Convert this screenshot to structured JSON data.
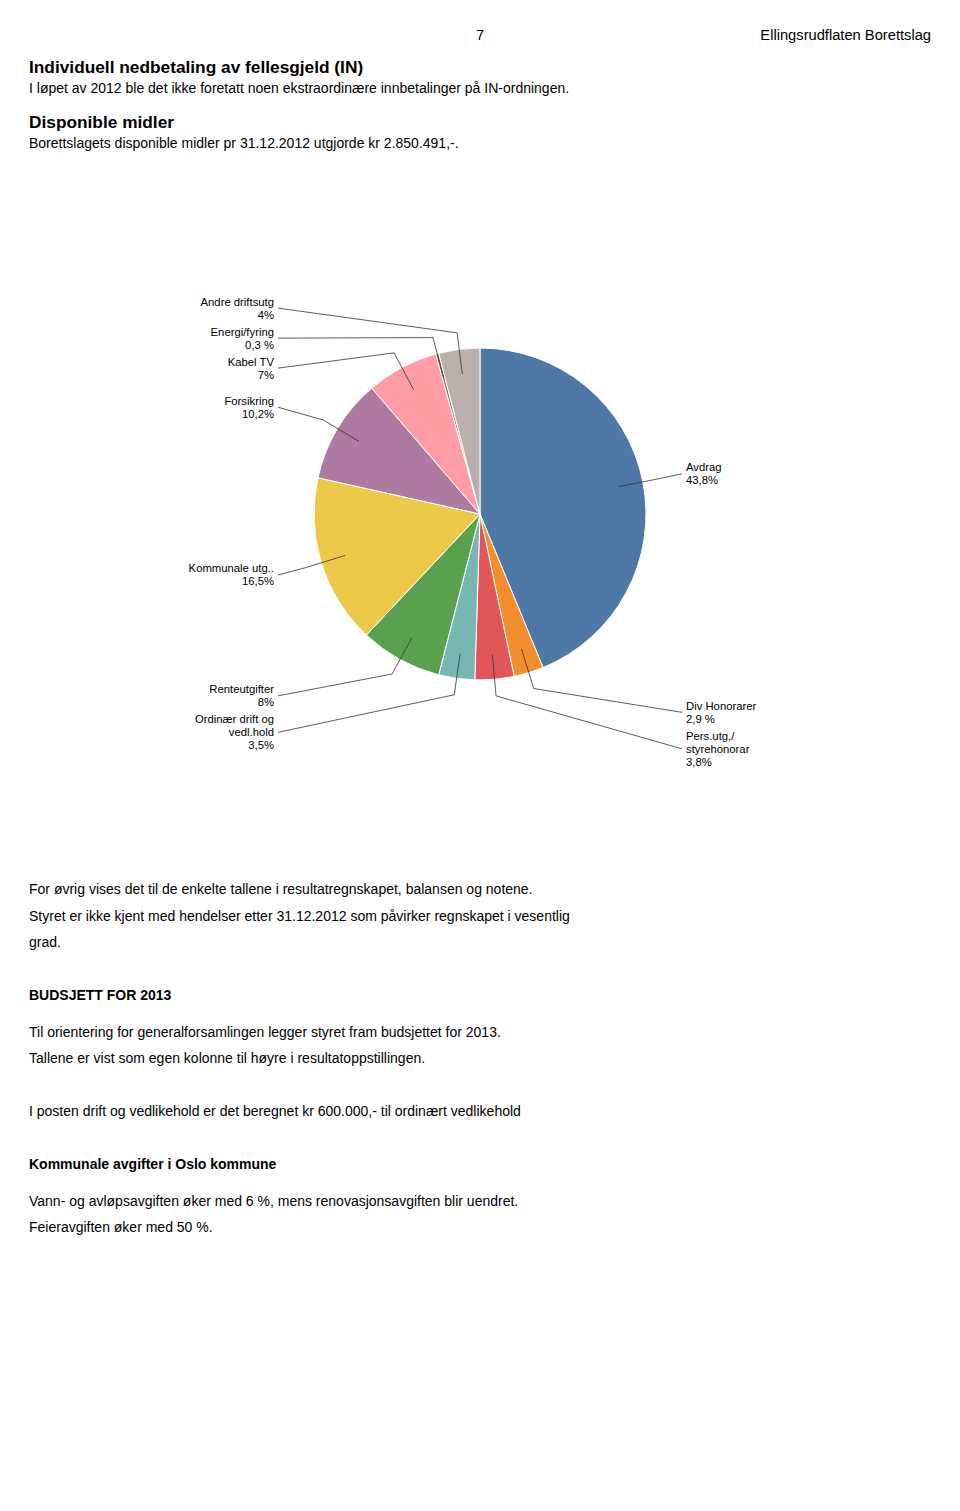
{
  "page": {
    "page_number": "7",
    "header": "Ellingsrudflaten Borettslag",
    "above": [
      {
        "heading": "Individuell nedbetaling av fellesgjeld (IN)",
        "paragraphs": [
          [
            "I løpet av 2012 ble det ikke foretatt noen ekstraordinære innbetalinger på IN-ordningen."
          ]
        ]
      },
      {
        "heading": "Disponible midler",
        "paragraphs": [
          [
            "Borettslagets disponible midler pr 31.12.2012 utgjorde kr 2.850.491,-."
          ]
        ]
      }
    ],
    "below": [
      {
        "paragraphs": [
          [
            "For øvrig vises det til de enkelte tallene i resultatregnskapet, balansen og notene.",
            "Styret er ikke kjent med hendelser etter 31.12.2012 som påvirker regnskapet i vesentlig",
            "grad."
          ]
        ]
      },
      {
        "heading": "BUDSJETT FOR 2013",
        "paragraphs": [
          [
            "Til orientering for generalforsamlingen legger styret fram budsjettet for 2013.",
            "Tallene er vist som egen kolonne til høyre i resultatoppstillingen."
          ],
          [
            "I posten drift og vedlikehold er det beregnet kr 600.000,- til ordinært vedlikehold"
          ]
        ]
      },
      {
        "heading": "Kommunale avgifter i Oslo kommune",
        "paragraphs": [
          [
            "Vann- og avløpsavgiften øker med 6 %, mens renovasjonsavgiften blir uendret.",
            "Feieravgiften øker med 50 %."
          ]
        ]
      }
    ]
  },
  "chart_data": {
    "type": "pie",
    "categories": [
      "Avdrag\n43,8%",
      "Div Honorarer\n2,9 %",
      "Pers.utg,/\nstyrehonorar\n3,8%",
      "Ordinær drift og\nvedl.hold\n3,5%",
      "Renteutgifter\n8%",
      "Kommunale utg..\n16,5%",
      "Forsikring\n10,2%",
      "Kabel TV\n7%",
      "Energi/fyring\n0,3 %",
      "Andre driftsutg\n4%"
    ],
    "values": [
      43.8,
      2.9,
      3.8,
      3.5,
      8.0,
      16.5,
      10.2,
      7.0,
      0.3,
      4.0
    ]
  }
}
